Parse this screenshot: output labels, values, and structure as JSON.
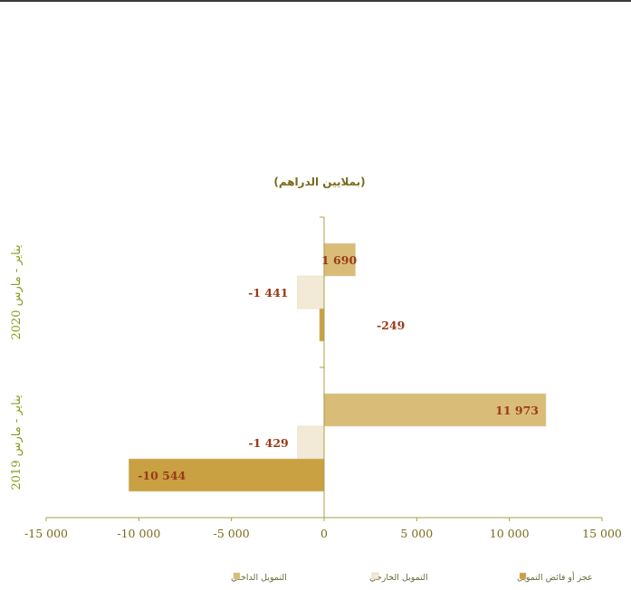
{
  "chart_data": {
    "type": "bar",
    "orientation": "horizontal",
    "subtitle": "(بملايين الدراهم)",
    "categories": [
      "يناير - مارس 2020",
      "يناير - مارس 2019"
    ],
    "series": [
      {
        "name": "التمويل الداخلي",
        "color": "#d9bc78",
        "values": [
          1690,
          11973
        ],
        "labels": [
          "1 690",
          "11 973"
        ]
      },
      {
        "name": "التمويل الخارجي",
        "color": "#f2ead6",
        "values": [
          -1441,
          -1429
        ],
        "labels": [
          "-1 441",
          "-1 429"
        ]
      },
      {
        "name": "عجز أو فائض التمويل",
        "color": "#c9a042",
        "values": [
          -249,
          -10544
        ],
        "labels": [
          "-249",
          "-10 544"
        ]
      }
    ],
    "xlim": [
      -15000,
      15000
    ],
    "xticks": [
      -15000,
      -10000,
      -5000,
      0,
      5000,
      10000,
      15000
    ],
    "xtick_labels": [
      "-15 000",
      "-10 000",
      "-5 000",
      "0",
      "5 000",
      "10 000",
      "15 000"
    ],
    "grid": false,
    "legend_position": "bottom"
  }
}
